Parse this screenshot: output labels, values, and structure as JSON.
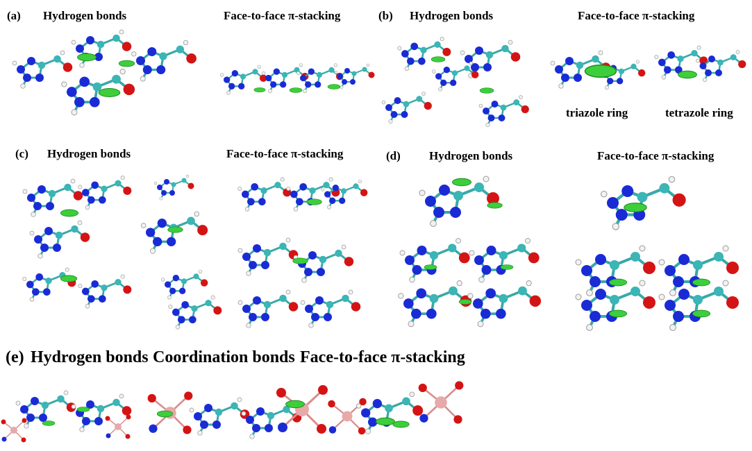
{
  "panels": [
    {
      "label": "(a)",
      "titles": [
        "Hydrogen bonds",
        "Face-to-face π-stacking"
      ]
    },
    {
      "label": "(b)",
      "titles": [
        "Hydrogen bonds",
        "Face-to-face π-stacking"
      ],
      "notes": [
        "triazole ring",
        "tetrazole ring"
      ]
    },
    {
      "label": "(c)",
      "titles": [
        "Hydrogen bonds",
        "Face-to-face π-stacking"
      ]
    },
    {
      "label": "(d)",
      "titles": [
        "Hydrogen bonds",
        "Face-to-face π-stacking"
      ]
    },
    {
      "label": "(e)",
      "titles": [
        "Hydrogen bonds",
        "Coordination bonds",
        "Face-to-face π-stacking"
      ]
    }
  ]
}
